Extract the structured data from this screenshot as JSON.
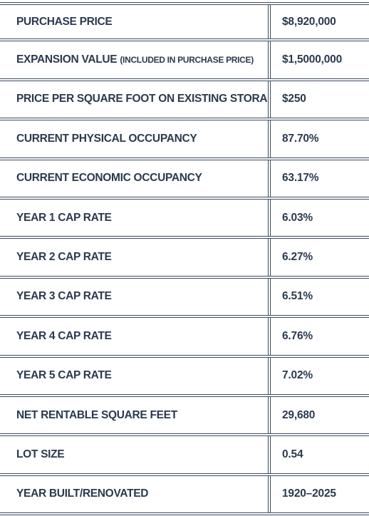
{
  "rows": [
    {
      "label": "PURCHASE PRICE",
      "note": "",
      "value": "$8,920,000"
    },
    {
      "label": "EXPANSION VALUE",
      "note": "(INCLUDED IN PURCHASE PRICE)",
      "value": "$1,5000,000"
    },
    {
      "label": "PRICE PER SQUARE FOOT ON EXISTING STORAGE",
      "note": "",
      "value": "$250"
    },
    {
      "label": "CURRENT PHYSICAL OCCUPANCY",
      "note": "",
      "value": "87.70%"
    },
    {
      "label": "CURRENT ECONOMIC OCCUPANCY",
      "note": "",
      "value": "63.17%"
    },
    {
      "label": "YEAR 1 CAP RATE",
      "note": "",
      "value": "6.03%"
    },
    {
      "label": "YEAR 2 CAP RATE",
      "note": "",
      "value": "6.27%"
    },
    {
      "label": "YEAR 3 CAP RATE",
      "note": "",
      "value": "6.51%"
    },
    {
      "label": "YEAR 4 CAP RATE",
      "note": "",
      "value": "6.76%"
    },
    {
      "label": "YEAR 5 CAP RATE",
      "note": "",
      "value": "7.02%"
    },
    {
      "label": "NET RENTABLE SQUARE FEET",
      "note": "",
      "value": "29,680"
    },
    {
      "label": "LOT SIZE",
      "note": "",
      "value": "0.54"
    },
    {
      "label": "YEAR BUILT/RENOVATED",
      "note": "",
      "value": "1920–2025"
    }
  ]
}
